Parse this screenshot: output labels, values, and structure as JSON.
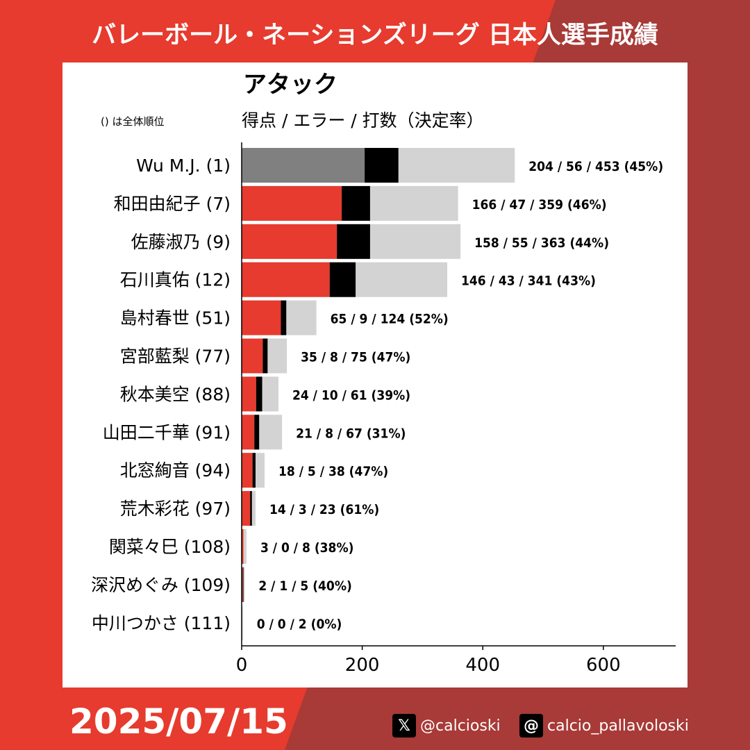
{
  "header": {
    "title": "バレーボール・ネーションズリーグ 日本人選手成績"
  },
  "footer": {
    "date": "2025/07/15",
    "x_handle": "@calcioski",
    "threads_handle": "calcio_pallavoloski",
    "x_icon": "x-logo-icon",
    "threads_icon": "threads-logo-icon"
  },
  "colors": {
    "page_red": "#e63b2e",
    "page_dark_red": "#a83a37",
    "highlight_points": "#808080",
    "points": "#e63b2e",
    "errors": "#000000",
    "attempts": "#d3d3d3"
  },
  "chart_data": {
    "type": "bar",
    "orientation": "horizontal",
    "stacked": true,
    "title": "アタック",
    "subtitle": "得点 / エラー / 打数（決定率）",
    "note": "() は全体順位",
    "xlim": [
      0,
      720
    ],
    "xticks": [
      0,
      200,
      400,
      600
    ],
    "grid": false,
    "categories": [
      "Wu M.J. (1)",
      "和田由紀子 (7)",
      "佐藤淑乃 (9)",
      "石川真佑 (12)",
      "島村春世 (51)",
      "宮部藍梨 (77)",
      "秋本美空 (88)",
      "山田二千華 (91)",
      "北窓絢音 (94)",
      "荒木彩花 (97)",
      "関菜々巳 (108)",
      "深沢めぐみ (109)",
      "中川つかさ (111)"
    ],
    "series": [
      {
        "key": "points",
        "values": [
          204,
          166,
          158,
          146,
          65,
          35,
          24,
          21,
          18,
          14,
          3,
          2,
          0
        ]
      },
      {
        "key": "errors",
        "values": [
          56,
          47,
          55,
          43,
          9,
          8,
          10,
          8,
          5,
          3,
          0,
          1,
          0
        ]
      },
      {
        "key": "attempts",
        "values": [
          453,
          359,
          363,
          341,
          124,
          75,
          61,
          67,
          38,
          23,
          8,
          5,
          2
        ]
      }
    ],
    "value_labels": [
      "204 / 56 / 453 (45%)",
      "166 / 47 / 359 (46%)",
      "158 / 55 / 363 (44%)",
      "146 / 43 / 341 (43%)",
      "65 / 9 / 124 (52%)",
      "35 / 8 / 75 (47%)",
      "24 / 10 / 61 (39%)",
      "21 / 8 / 67 (31%)",
      "18 / 5 / 38 (47%)",
      "14 / 3 / 23 (61%)",
      "3 / 0 / 8 (38%)",
      "2 / 1 / 5 (40%)",
      "0 / 0 / 2 (0%)"
    ],
    "highlight_index": 0
  }
}
